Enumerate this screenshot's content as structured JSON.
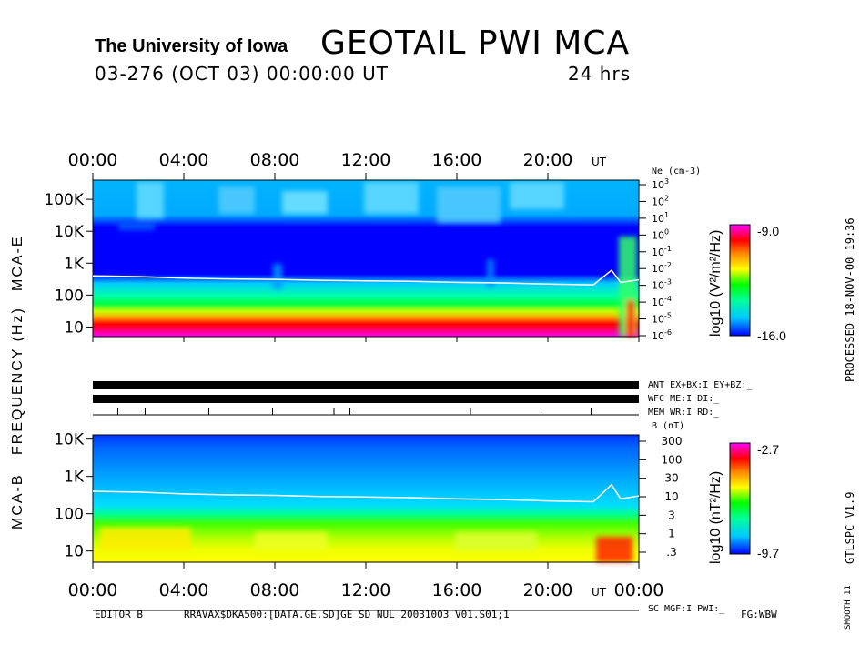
{
  "header": {
    "institution": "The University of Iowa",
    "title": "GEOTAIL PWI MCA",
    "date_line": "03-276 (OCT 03) 00:00:00 UT",
    "duration": "24 hrs"
  },
  "side": {
    "processed": "PROCESSED 18-NOV-00 19:36",
    "program": "GTLSPC V1.9",
    "smooth": "SMOOTH 11"
  },
  "footer": {
    "editor": "EDITOR B",
    "path": "RRAVAX$DKA500:[DATA.GE.SD]GE_SD_NUL_20031003_V01.S01;1",
    "fg": "FG:WBW"
  },
  "chart_data": [
    {
      "type": "heatmap",
      "title": "MCA-E",
      "xlabel": "UT",
      "ylabel": "FREQUENCY (Hz)",
      "x_ticks": [
        "00:00",
        "04:00",
        "08:00",
        "12:00",
        "16:00",
        "20:00",
        "00:00"
      ],
      "x_unit": "UT",
      "y_ticks": [
        "10",
        "100",
        "1K",
        "10K",
        "100K"
      ],
      "y_scale": "log",
      "ylim": [
        5,
        400000
      ],
      "right_axis_label": "Ne (cm-3)",
      "right_ticks": [
        "10^3",
        "10^2",
        "10^1",
        "10^0",
        "10^-1",
        "10^-2",
        "10^-3",
        "10^-4",
        "10^-5",
        "10^-6"
      ],
      "colorbar": {
        "label": "log10 (V²/m²/Hz)",
        "max": "-9.0",
        "min": "-16.0"
      },
      "colorscale": [
        "#0000ff",
        "#00c8ff",
        "#00ff99",
        "#00ff00",
        "#ffff00",
        "#ff8800",
        "#ff0000",
        "#ff00ff"
      ],
      "plasma_line_hz": {
        "x_hours": [
          0,
          2,
          4,
          6,
          8,
          10,
          12,
          14,
          16,
          18,
          20,
          22,
          22.8,
          23.2,
          24
        ],
        "y": [
          400,
          380,
          340,
          320,
          310,
          290,
          280,
          270,
          250,
          240,
          220,
          210,
          600,
          250,
          300
        ]
      }
    },
    {
      "type": "heatmap",
      "title": "MCA-B",
      "xlabel": "UT",
      "x_ticks": [
        "00:00",
        "04:00",
        "08:00",
        "12:00",
        "16:00",
        "20:00",
        "00:00"
      ],
      "x_unit": "UT",
      "y_ticks": [
        "10",
        "100",
        "1K",
        "10K"
      ],
      "y_scale": "log",
      "ylim": [
        5,
        13000
      ],
      "right_axis_label": "B (nT)",
      "right_ticks": [
        "300",
        "100",
        "30",
        "10",
        "3",
        "1",
        ".3"
      ],
      "colorbar": {
        "label": "log10 (nT²/Hz)",
        "max": "-2.7",
        "min": "-9.7"
      },
      "colorscale": [
        "#0000ff",
        "#00c8ff",
        "#00ff99",
        "#00ff00",
        "#ffff00",
        "#ff8800",
        "#ff0000",
        "#ff00ff"
      ],
      "plasma_line_hz": {
        "x_hours": [
          0,
          2,
          4,
          6,
          8,
          10,
          12,
          14,
          16,
          18,
          20,
          22,
          22.8,
          23.2,
          24
        ],
        "y": [
          400,
          380,
          340,
          320,
          310,
          290,
          280,
          270,
          250,
          240,
          220,
          210,
          600,
          250,
          300
        ]
      }
    }
  ],
  "status_rows": {
    "ant": "ANT EX+BX:I EY+BZ:_",
    "wfc": "WFC ME:I DI:_",
    "mem": "MEM WR:I RD:_",
    "sc": "SC MGF:I PWI:_"
  }
}
